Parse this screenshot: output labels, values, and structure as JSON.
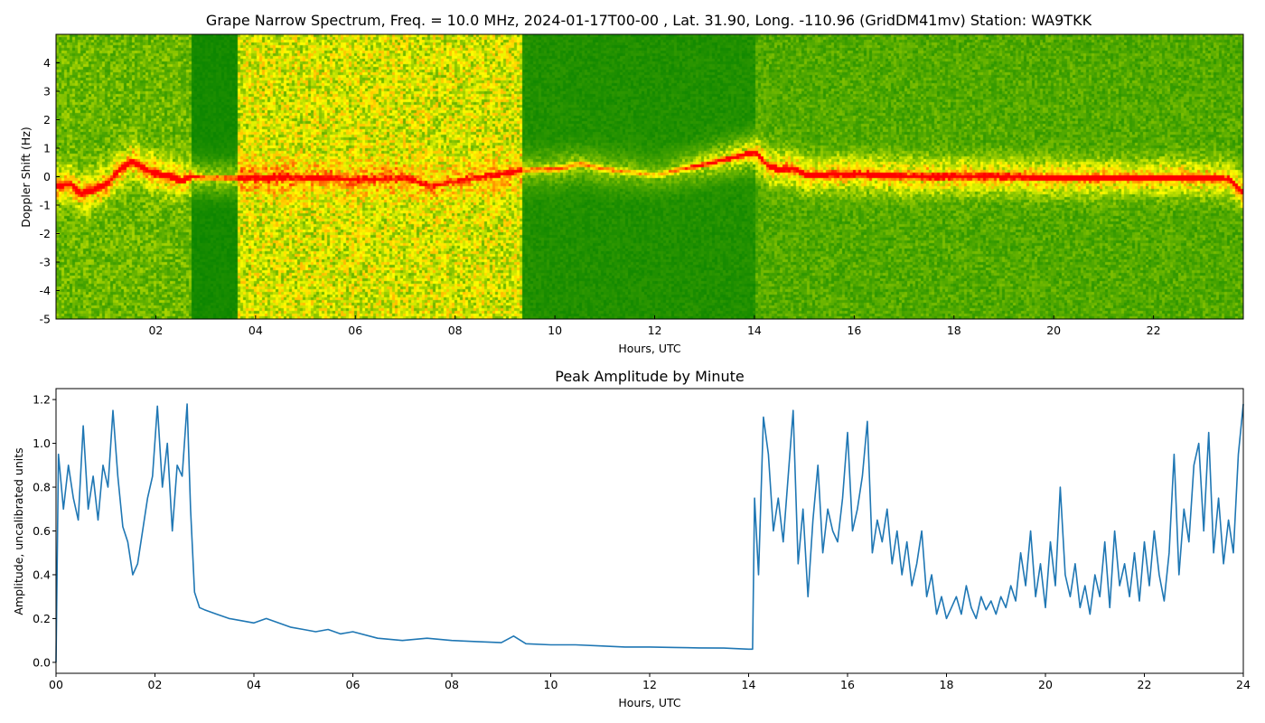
{
  "chart_data": [
    {
      "type": "heatmap",
      "title": "Grape Narrow Spectrum, Freq. = 10.0 MHz, 2024-01-17T00-00 , Lat.  31.90, Long. -110.96 (GridDM41mv) Station: WA9TKK",
      "xlabel": "Hours, UTC",
      "ylabel": "Doppler Shift (Hz)",
      "xlim": [
        0,
        23.8
      ],
      "ylim": [
        -5,
        5
      ],
      "xticks": [
        "02",
        "04",
        "06",
        "08",
        "10",
        "12",
        "14",
        "16",
        "18",
        "20",
        "22"
      ],
      "xtick_values": [
        2,
        4,
        6,
        8,
        10,
        12,
        14,
        16,
        18,
        20,
        22
      ],
      "yticks": [
        "-5",
        "-4",
        "-3",
        "-2",
        "-1",
        "0",
        "1",
        "2",
        "3",
        "4"
      ],
      "ytick_values": [
        -5,
        -4,
        -3,
        -2,
        -1,
        0,
        1,
        2,
        3,
        4
      ],
      "colormap": [
        "#008000",
        "#66b300",
        "#ffff00",
        "#ff8c00",
        "#ff0000"
      ],
      "background_bands": [
        {
          "x": [
            0,
            2.7
          ],
          "level": 0.25
        },
        {
          "x": [
            2.7,
            3.6
          ],
          "level": 0.05
        },
        {
          "x": [
            3.6,
            9.3
          ],
          "level": 0.45
        },
        {
          "x": [
            9.3,
            14.0
          ],
          "level": 0.08
        },
        {
          "x": [
            14.0,
            23.8
          ],
          "level": 0.2
        }
      ],
      "doppler_trace": {
        "x": [
          0,
          0.25,
          0.5,
          0.75,
          1.0,
          1.25,
          1.5,
          1.75,
          2.0,
          2.25,
          2.5,
          2.7,
          3.0,
          4.0,
          5.0,
          6.0,
          7.0,
          7.5,
          8.0,
          9.5,
          10.0,
          10.5,
          11.0,
          11.5,
          12.0,
          14.0,
          14.25,
          14.5,
          14.75,
          15.0,
          16.0,
          17.0,
          18.0,
          19.0,
          20.0,
          21.0,
          22.0,
          23.0,
          23.5,
          23.8
        ],
        "y": [
          -0.3,
          -0.2,
          -0.55,
          -0.4,
          -0.2,
          0.3,
          0.6,
          0.3,
          0.15,
          0.05,
          -0.1,
          0.05,
          0.0,
          0.0,
          0.0,
          -0.05,
          0.0,
          -0.3,
          -0.1,
          0.3,
          0.3,
          0.5,
          0.3,
          0.2,
          0.1,
          0.9,
          0.4,
          0.3,
          0.35,
          0.1,
          0.15,
          0.05,
          0.05,
          0.05,
          0.0,
          0.0,
          0.0,
          0.0,
          -0.05,
          -0.6
        ],
        "intensity": [
          0.9,
          0.9,
          0.95,
          0.95,
          0.95,
          0.95,
          0.9,
          0.9,
          0.9,
          0.9,
          0.85,
          0.7,
          0.6,
          0.6,
          0.55,
          0.55,
          0.5,
          0.45,
          0.4,
          0.5,
          0.55,
          0.5,
          0.5,
          0.45,
          0.4,
          0.95,
          0.95,
          0.95,
          0.95,
          0.9,
          0.9,
          0.9,
          0.9,
          0.9,
          0.9,
          0.9,
          0.9,
          0.9,
          0.9,
          0.9
        ]
      }
    },
    {
      "type": "line",
      "title": "Peak Amplitude by Minute",
      "xlabel": "Hours, UTC",
      "ylabel": "Amplitude, uncalibrated units",
      "xlim": [
        0,
        24
      ],
      "ylim": [
        -0.05,
        1.25
      ],
      "xticks": [
        "00",
        "02",
        "04",
        "06",
        "08",
        "10",
        "12",
        "14",
        "16",
        "18",
        "20",
        "22",
        "24"
      ],
      "xtick_values": [
        0,
        2,
        4,
        6,
        8,
        10,
        12,
        14,
        16,
        18,
        20,
        22,
        24
      ],
      "yticks": [
        "0.0",
        "0.2",
        "0.4",
        "0.6",
        "0.8",
        "1.0",
        "1.2"
      ],
      "ytick_values": [
        0.0,
        0.2,
        0.4,
        0.6,
        0.8,
        1.0,
        1.2
      ],
      "color": "#1f77b4",
      "series": [
        {
          "x": [
            0.0,
            0.05,
            0.15,
            0.25,
            0.35,
            0.45,
            0.55,
            0.65,
            0.75,
            0.85,
            0.95,
            1.05,
            1.15,
            1.25,
            1.35,
            1.45,
            1.55,
            1.65,
            1.75,
            1.85,
            1.95,
            2.05,
            2.15,
            2.25,
            2.35,
            2.45,
            2.55,
            2.65,
            2.72,
            2.8,
            2.9,
            3.0,
            3.25,
            3.5,
            3.75,
            4.0,
            4.25,
            4.5,
            4.75,
            5.0,
            5.25,
            5.5,
            5.75,
            6.0,
            6.5,
            7.0,
            7.5,
            8.0,
            8.5,
            9.0,
            9.25,
            9.5,
            10.0,
            10.5,
            11.0,
            11.5,
            12.0,
            12.5,
            13.0,
            13.5,
            14.0,
            14.08,
            14.12,
            14.2,
            14.3,
            14.4,
            14.5,
            14.6,
            14.7,
            14.8,
            14.9,
            15.0,
            15.1,
            15.2,
            15.3,
            15.4,
            15.5,
            15.6,
            15.7,
            15.8,
            15.9,
            16.0,
            16.1,
            16.2,
            16.3,
            16.4,
            16.5,
            16.6,
            16.7,
            16.8,
            16.9,
            17.0,
            17.1,
            17.2,
            17.3,
            17.4,
            17.5,
            17.6,
            17.7,
            17.8,
            17.9,
            18.0,
            18.1,
            18.2,
            18.3,
            18.4,
            18.5,
            18.6,
            18.7,
            18.8,
            18.9,
            19.0,
            19.1,
            19.2,
            19.3,
            19.4,
            19.5,
            19.6,
            19.7,
            19.8,
            19.9,
            20.0,
            20.1,
            20.2,
            20.3,
            20.4,
            20.5,
            20.6,
            20.7,
            20.8,
            20.9,
            21.0,
            21.1,
            21.2,
            21.3,
            21.4,
            21.5,
            21.6,
            21.7,
            21.8,
            21.9,
            22.0,
            22.1,
            22.2,
            22.3,
            22.4,
            22.5,
            22.6,
            22.7,
            22.8,
            22.9,
            23.0,
            23.1,
            23.2,
            23.3,
            23.4,
            23.5,
            23.6,
            23.7,
            23.8,
            23.9,
            24.0
          ],
          "values": [
            0.0,
            0.95,
            0.7,
            0.9,
            0.75,
            0.65,
            1.08,
            0.7,
            0.85,
            0.65,
            0.9,
            0.8,
            1.15,
            0.85,
            0.62,
            0.55,
            0.4,
            0.45,
            0.6,
            0.75,
            0.85,
            1.17,
            0.8,
            1.0,
            0.6,
            0.9,
            0.85,
            1.18,
            0.7,
            0.32,
            0.25,
            0.24,
            0.22,
            0.2,
            0.19,
            0.18,
            0.2,
            0.18,
            0.16,
            0.15,
            0.14,
            0.15,
            0.13,
            0.14,
            0.11,
            0.1,
            0.11,
            0.1,
            0.095,
            0.09,
            0.12,
            0.085,
            0.08,
            0.08,
            0.075,
            0.07,
            0.07,
            0.068,
            0.066,
            0.065,
            0.06,
            0.06,
            0.75,
            0.4,
            1.12,
            0.95,
            0.6,
            0.75,
            0.55,
            0.85,
            1.15,
            0.45,
            0.7,
            0.3,
            0.65,
            0.9,
            0.5,
            0.7,
            0.6,
            0.55,
            0.75,
            1.05,
            0.6,
            0.7,
            0.85,
            1.1,
            0.5,
            0.65,
            0.55,
            0.7,
            0.45,
            0.6,
            0.4,
            0.55,
            0.35,
            0.45,
            0.6,
            0.3,
            0.4,
            0.22,
            0.3,
            0.2,
            0.25,
            0.3,
            0.22,
            0.35,
            0.25,
            0.2,
            0.3,
            0.24,
            0.28,
            0.22,
            0.3,
            0.25,
            0.35,
            0.28,
            0.5,
            0.35,
            0.6,
            0.3,
            0.45,
            0.25,
            0.55,
            0.35,
            0.8,
            0.4,
            0.3,
            0.45,
            0.25,
            0.35,
            0.22,
            0.4,
            0.3,
            0.55,
            0.25,
            0.6,
            0.35,
            0.45,
            0.3,
            0.5,
            0.28,
            0.55,
            0.35,
            0.6,
            0.4,
            0.28,
            0.5,
            0.95,
            0.4,
            0.7,
            0.55,
            0.9,
            1.0,
            0.6,
            1.05,
            0.5,
            0.75,
            0.45,
            0.65,
            0.5,
            0.95,
            1.18
          ]
        }
      ]
    }
  ]
}
